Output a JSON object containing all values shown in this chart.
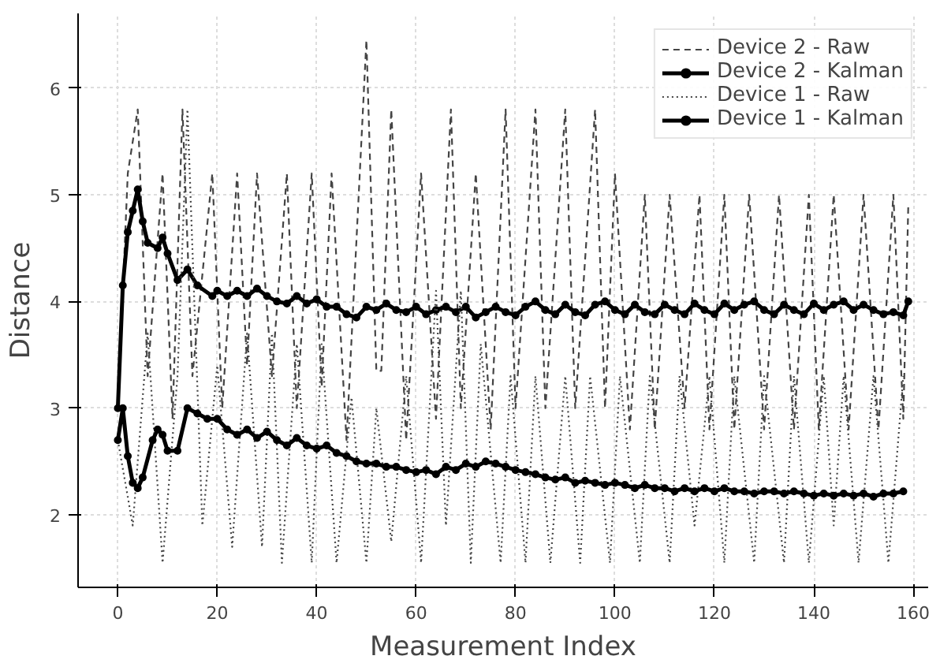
{
  "chart_data": {
    "type": "line",
    "xlabel": "Measurement Index",
    "ylabel": "Distance",
    "xlim": [
      -8,
      163
    ],
    "ylim": [
      1.32,
      6.7
    ],
    "xticks": [
      0,
      20,
      40,
      60,
      80,
      100,
      120,
      140,
      160
    ],
    "yticks": [
      2,
      3,
      4,
      5,
      6
    ],
    "grid": true,
    "legend": "top right",
    "series": [
      {
        "name": "Device 2 - Raw",
        "color": "#444444",
        "line_style": "dashed",
        "marker": "none",
        "x": [
          0,
          2,
          4,
          6,
          9,
          11,
          13,
          15,
          19,
          21,
          24,
          26,
          28,
          31,
          34,
          36,
          39,
          41,
          43,
          46,
          50,
          52,
          53,
          55,
          58,
          61,
          64,
          67,
          69,
          72,
          75,
          78,
          80,
          84,
          86,
          90,
          92,
          96,
          98,
          100,
          103,
          106,
          108,
          111,
          114,
          117,
          119,
          122,
          124,
          127,
          130,
          133,
          136,
          139,
          141,
          144,
          147,
          150,
          153,
          156,
          158,
          159
        ],
        "values": [
          3.0,
          5.2,
          5.8,
          3.3,
          5.2,
          2.9,
          5.8,
          3.3,
          5.2,
          3.0,
          5.2,
          3.4,
          5.2,
          3.3,
          5.2,
          3.0,
          5.2,
          3.2,
          5.2,
          2.7,
          6.45,
          3.35,
          3.35,
          5.8,
          2.7,
          5.2,
          2.9,
          5.8,
          3.0,
          5.2,
          2.8,
          5.8,
          3.0,
          5.8,
          3.0,
          5.8,
          3.0,
          5.8,
          3.0,
          5.2,
          2.8,
          5.0,
          2.8,
          5.0,
          3.0,
          5.0,
          2.8,
          5.0,
          2.8,
          5.0,
          2.8,
          5.0,
          2.8,
          5.0,
          2.8,
          5.0,
          2.8,
          5.0,
          2.8,
          5.0,
          2.9,
          4.9
        ]
      },
      {
        "name": "Device 2 - Kalman",
        "color": "#000000",
        "line_style": "solid",
        "marker": "circle",
        "x": [
          0,
          1,
          2,
          3,
          4,
          5,
          6,
          8,
          9,
          10,
          12,
          14,
          16,
          19,
          20,
          22,
          24,
          26,
          28,
          30,
          32,
          34,
          36,
          38,
          40,
          42,
          44,
          46,
          48,
          50,
          52,
          54,
          56,
          58,
          60,
          62,
          64,
          66,
          68,
          70,
          72,
          74,
          76,
          78,
          80,
          82,
          84,
          86,
          88,
          90,
          92,
          94,
          96,
          98,
          100,
          102,
          104,
          106,
          108,
          110,
          112,
          114,
          116,
          118,
          120,
          122,
          124,
          126,
          128,
          130,
          132,
          134,
          136,
          138,
          140,
          142,
          144,
          146,
          148,
          150,
          152,
          154,
          156,
          158,
          159
        ],
        "values": [
          3.0,
          4.15,
          4.65,
          4.85,
          5.05,
          4.75,
          4.55,
          4.5,
          4.6,
          4.45,
          4.2,
          4.3,
          4.15,
          4.05,
          4.1,
          4.05,
          4.1,
          4.05,
          4.12,
          4.05,
          4.0,
          3.98,
          4.05,
          3.98,
          4.02,
          3.95,
          3.95,
          3.88,
          3.85,
          3.95,
          3.92,
          3.98,
          3.92,
          3.9,
          3.95,
          3.88,
          3.92,
          3.95,
          3.9,
          3.95,
          3.85,
          3.9,
          3.95,
          3.9,
          3.87,
          3.95,
          4.0,
          3.92,
          3.88,
          3.97,
          3.9,
          3.87,
          3.97,
          4.0,
          3.92,
          3.88,
          3.97,
          3.9,
          3.88,
          3.97,
          3.92,
          3.88,
          3.98,
          3.92,
          3.88,
          3.98,
          3.92,
          3.97,
          4.0,
          3.92,
          3.88,
          3.97,
          3.92,
          3.88,
          3.98,
          3.92,
          3.97,
          4.0,
          3.92,
          3.97,
          3.92,
          3.88,
          3.9,
          3.87,
          4.0
        ]
      },
      {
        "name": "Device 1 - Raw",
        "color": "#444444",
        "line_style": "dotted",
        "marker": "none",
        "x": [
          0,
          3,
          6,
          9,
          12,
          14,
          17,
          20,
          23,
          26,
          29,
          31,
          33,
          36,
          39,
          41,
          44,
          47,
          50,
          52,
          55,
          58,
          61,
          64,
          66,
          69,
          71,
          73,
          77,
          79,
          82,
          84,
          87,
          90,
          93,
          95,
          99,
          101,
          105,
          107,
          111,
          113,
          116,
          119,
          122,
          124,
          128,
          130,
          134,
          136,
          139,
          142,
          144,
          146,
          149,
          152,
          155,
          158
        ],
        "values": [
          2.7,
          1.9,
          3.7,
          1.55,
          3.3,
          5.8,
          1.9,
          3.4,
          1.7,
          3.7,
          1.7,
          3.7,
          1.55,
          3.6,
          1.55,
          3.6,
          1.55,
          3.1,
          1.55,
          3.0,
          1.75,
          3.3,
          1.55,
          4.1,
          1.9,
          4.1,
          1.55,
          3.6,
          1.55,
          3.3,
          1.55,
          3.3,
          1.55,
          3.3,
          1.55,
          3.3,
          1.55,
          3.3,
          1.55,
          3.3,
          1.55,
          3.3,
          1.9,
          3.3,
          1.55,
          3.3,
          1.55,
          3.3,
          1.55,
          3.3,
          1.55,
          3.3,
          1.9,
          3.3,
          1.55,
          3.3,
          1.55,
          3.3
        ]
      },
      {
        "name": "Device 1 - Kalman",
        "color": "#000000",
        "line_style": "solid",
        "marker": "circle",
        "x": [
          0,
          1,
          2,
          3,
          4,
          5,
          7,
          8,
          9,
          10,
          12,
          14,
          16,
          18,
          20,
          22,
          24,
          26,
          28,
          30,
          32,
          34,
          36,
          38,
          40,
          42,
          44,
          46,
          48,
          50,
          52,
          54,
          56,
          58,
          60,
          62,
          64,
          66,
          68,
          70,
          72,
          74,
          76,
          78,
          80,
          82,
          84,
          86,
          88,
          90,
          92,
          94,
          96,
          98,
          100,
          102,
          104,
          106,
          108,
          110,
          112,
          114,
          116,
          118,
          120,
          122,
          124,
          126,
          128,
          130,
          132,
          134,
          136,
          138,
          140,
          142,
          144,
          146,
          148,
          150,
          152,
          154,
          156,
          158
        ],
        "values": [
          2.7,
          3.0,
          2.55,
          2.3,
          2.25,
          2.35,
          2.7,
          2.8,
          2.75,
          2.6,
          2.6,
          3.0,
          2.95,
          2.9,
          2.9,
          2.8,
          2.75,
          2.8,
          2.72,
          2.78,
          2.7,
          2.65,
          2.72,
          2.65,
          2.62,
          2.65,
          2.58,
          2.55,
          2.5,
          2.48,
          2.48,
          2.45,
          2.45,
          2.42,
          2.4,
          2.42,
          2.38,
          2.45,
          2.42,
          2.48,
          2.45,
          2.5,
          2.48,
          2.45,
          2.42,
          2.4,
          2.38,
          2.35,
          2.33,
          2.35,
          2.3,
          2.32,
          2.3,
          2.28,
          2.3,
          2.28,
          2.25,
          2.28,
          2.25,
          2.25,
          2.22,
          2.25,
          2.22,
          2.25,
          2.22,
          2.25,
          2.22,
          2.22,
          2.2,
          2.22,
          2.22,
          2.2,
          2.22,
          2.2,
          2.18,
          2.2,
          2.18,
          2.2,
          2.18,
          2.2,
          2.17,
          2.2,
          2.2,
          2.22
        ]
      }
    ]
  }
}
